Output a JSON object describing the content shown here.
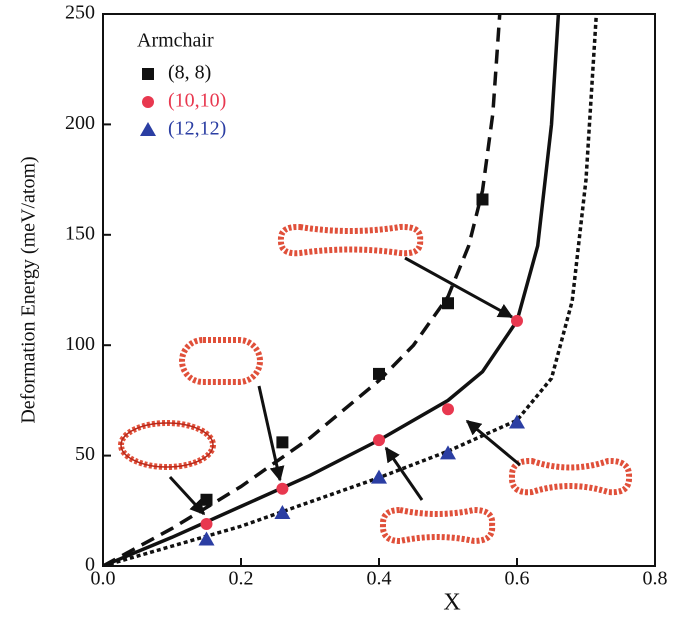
{
  "chart_data": {
    "type": "scatter",
    "xlabel": "X",
    "ylabel": "Deformation Energy (meV/atom)",
    "legend_title": "Armchair",
    "legend": "upper left",
    "xlim": [
      0,
      0.8
    ],
    "ylim": [
      0,
      250
    ],
    "xticks": [
      {
        "value": 0,
        "label": "0.0"
      },
      0.2,
      0.4,
      0.6,
      0.8
    ],
    "yticks": [
      0,
      50,
      100,
      150,
      200,
      250
    ],
    "series": [
      {
        "name": "(8, 8)",
        "color": "#111111",
        "marker": "square",
        "x": [
          0.15,
          0.26,
          0.4,
          0.5,
          0.55
        ],
        "values": [
          30,
          56,
          87,
          119,
          166
        ]
      },
      {
        "name": "(10,10)",
        "color": "#e8384f",
        "marker": "circle",
        "x": [
          0.15,
          0.26,
          0.4,
          0.5,
          0.6
        ],
        "values": [
          19,
          35,
          57,
          71,
          111
        ]
      },
      {
        "name": "(12,12)",
        "color": "#2b3ea3",
        "marker": "triangle",
        "x": [
          0.15,
          0.26,
          0.4,
          0.5,
          0.6
        ],
        "values": [
          12,
          24,
          40,
          51,
          65
        ]
      }
    ],
    "curves": [
      {
        "style": "dashed",
        "color": "#111111",
        "x": [
          0,
          0.1,
          0.2,
          0.3,
          0.4,
          0.45,
          0.5,
          0.53,
          0.55,
          0.565,
          0.575
        ],
        "values": [
          0,
          17,
          36,
          58,
          84,
          100,
          122,
          145,
          170,
          205,
          250
        ]
      },
      {
        "style": "solid",
        "color": "#111111",
        "x": [
          0,
          0.1,
          0.2,
          0.3,
          0.4,
          0.5,
          0.55,
          0.6,
          0.63,
          0.65,
          0.66
        ],
        "values": [
          0,
          13,
          27,
          41,
          57,
          75,
          88,
          111,
          145,
          200,
          250
        ]
      },
      {
        "style": "dotted",
        "color": "#111111",
        "x": [
          0,
          0.1,
          0.2,
          0.3,
          0.4,
          0.5,
          0.6,
          0.65,
          0.68,
          0.7,
          0.715
        ],
        "values": [
          0,
          9,
          18,
          29,
          40,
          52,
          66,
          85,
          120,
          175,
          250
        ]
      }
    ]
  }
}
